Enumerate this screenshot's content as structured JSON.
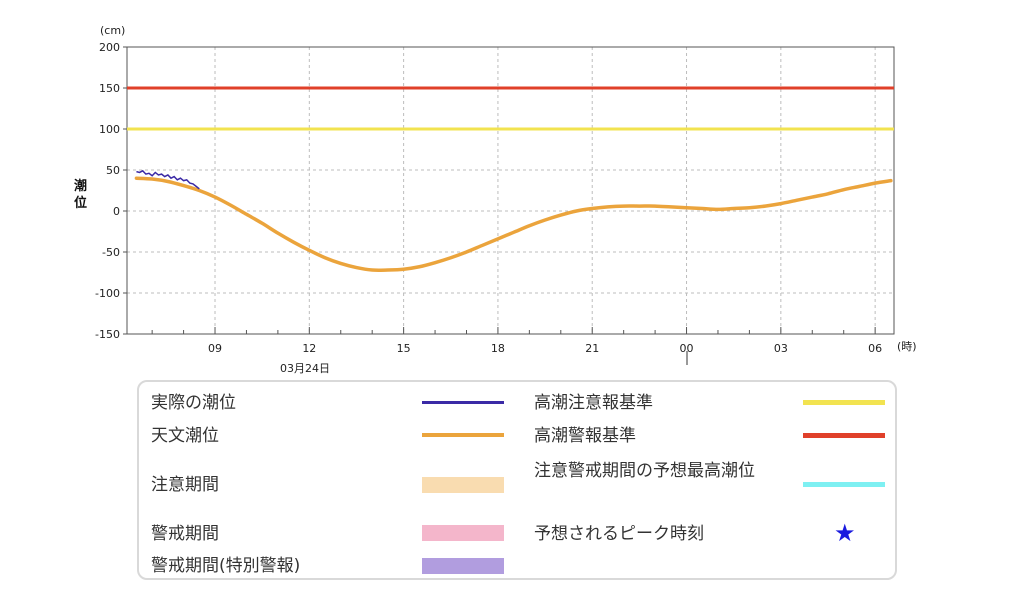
{
  "chart_data": {
    "type": "line",
    "y_unit": "(cm)",
    "y_title": [
      "潮",
      "位"
    ],
    "x_unit": "(時)",
    "date_label": "03月24日",
    "ylim": [
      -150,
      200
    ],
    "y_ticks": [
      "200",
      "150",
      "100",
      "50",
      "0",
      "-50",
      "-100",
      "-150"
    ],
    "x_ticks": [
      "09",
      "12",
      "15",
      "18",
      "21",
      "00",
      "03",
      "06"
    ],
    "grid": true,
    "threshold_lines": [
      {
        "name": "高潮警報基準",
        "value": 150,
        "color": "#e0402a"
      },
      {
        "name": "高潮注意報基準",
        "value": 100,
        "color": "#f2e350"
      }
    ],
    "series": [
      {
        "name": "天文潮位",
        "color": "#eba43c",
        "x_hours": [
          6.5,
          7.0,
          7.5,
          8.0,
          8.5,
          9.0,
          9.5,
          10.0,
          10.5,
          11.0,
          11.5,
          12.0,
          12.5,
          13.0,
          13.5,
          14.0,
          14.5,
          15.0,
          15.5,
          16.0,
          16.5,
          17.0,
          17.5,
          18.0,
          18.5,
          19.0,
          19.5,
          20.0,
          20.5,
          21.0,
          21.5,
          22.0,
          22.5,
          23.0,
          23.5,
          24.0,
          24.5,
          25.0,
          25.5,
          26.0,
          26.5,
          27.0,
          27.5,
          28.0,
          28.5,
          29.0,
          29.5,
          30.0,
          30.5
        ],
        "y": [
          40,
          39,
          36,
          31,
          25,
          17,
          7,
          -4,
          -15,
          -27,
          -38,
          -48,
          -57,
          -64,
          -69,
          -72,
          -72,
          -71,
          -68,
          -63,
          -57,
          -50,
          -42,
          -34,
          -26,
          -18,
          -11,
          -5,
          0,
          3,
          5,
          6,
          6,
          6,
          5,
          4,
          3,
          2,
          3,
          4,
          6,
          9,
          13,
          17,
          21,
          26,
          30,
          34,
          37
        ]
      },
      {
        "name": "実際の潮位",
        "color": "#3b2aa6",
        "x_hours": [
          6.5,
          6.6,
          6.7,
          6.8,
          6.9,
          7.0,
          7.1,
          7.2,
          7.3,
          7.4,
          7.5,
          7.6,
          7.7,
          7.8,
          7.9,
          8.0,
          8.1,
          8.2,
          8.3,
          8.4,
          8.5
        ],
        "y": [
          48,
          47,
          49,
          45,
          46,
          43,
          47,
          44,
          45,
          42,
          44,
          40,
          42,
          38,
          40,
          37,
          38,
          34,
          33,
          30,
          27
        ]
      }
    ],
    "legend": [
      {
        "label": "実際の潮位",
        "kind": "line",
        "color": "#3b2aa6"
      },
      {
        "label": "天文潮位",
        "kind": "line",
        "color": "#eba43c"
      },
      {
        "label": "注意期間",
        "kind": "box",
        "color": "#f9dcb0"
      },
      {
        "label": "警戒期間",
        "kind": "box",
        "color": "#f4b6cb"
      },
      {
        "label": "警戒期間(特別警報)",
        "kind": "box",
        "color": "#b19ddf"
      },
      {
        "label": "高潮注意報基準",
        "kind": "line",
        "color": "#f2e350"
      },
      {
        "label": "高潮警報基準",
        "kind": "line",
        "color": "#e0402a"
      },
      {
        "label": "注意警戒期間の予想最高潮位",
        "kind": "line",
        "color": "#7ef0f2"
      },
      {
        "label": "予想されるピーク時刻",
        "kind": "star",
        "color": "#1a1adf"
      }
    ]
  }
}
